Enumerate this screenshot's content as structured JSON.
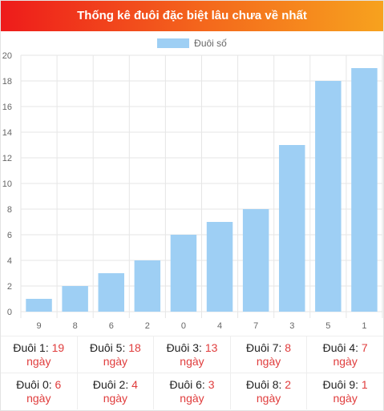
{
  "title": "Thống kê đuôi đặc biệt lâu chưa về nhất",
  "colors": {
    "bar": "#9ecff4",
    "accent": "#e03c3c"
  },
  "chart_data": {
    "type": "bar",
    "categories": [
      "9",
      "8",
      "6",
      "2",
      "0",
      "4",
      "7",
      "3",
      "5",
      "1"
    ],
    "series": [
      {
        "name": "Đuôi số",
        "values": [
          1,
          2,
          3,
          4,
          6,
          7,
          8,
          13,
          18,
          19
        ]
      }
    ],
    "ylim": [
      0,
      20
    ],
    "yticks": [
      0,
      2,
      4,
      6,
      8,
      10,
      12,
      14,
      16,
      18,
      20
    ],
    "grid": true,
    "legend": "top-center"
  },
  "stats": [
    [
      {
        "label": "Đuôi 1:",
        "value": "19",
        "unit": "ngày"
      },
      {
        "label": "Đuôi 5:",
        "value": "18",
        "unit": "ngày"
      },
      {
        "label": "Đuôi 3:",
        "value": "13",
        "unit": "ngày"
      },
      {
        "label": "Đuôi 7:",
        "value": "8",
        "unit": "ngày"
      },
      {
        "label": "Đuôi 4:",
        "value": "7",
        "unit": "ngày"
      }
    ],
    [
      {
        "label": "Đuôi 0:",
        "value": "6",
        "unit": "ngày"
      },
      {
        "label": "Đuôi 2:",
        "value": "4",
        "unit": "ngày"
      },
      {
        "label": "Đuôi 6:",
        "value": "3",
        "unit": "ngày"
      },
      {
        "label": "Đuôi 8:",
        "value": "2",
        "unit": "ngày"
      },
      {
        "label": "Đuôi 9:",
        "value": "1",
        "unit": "ngày"
      }
    ]
  ]
}
